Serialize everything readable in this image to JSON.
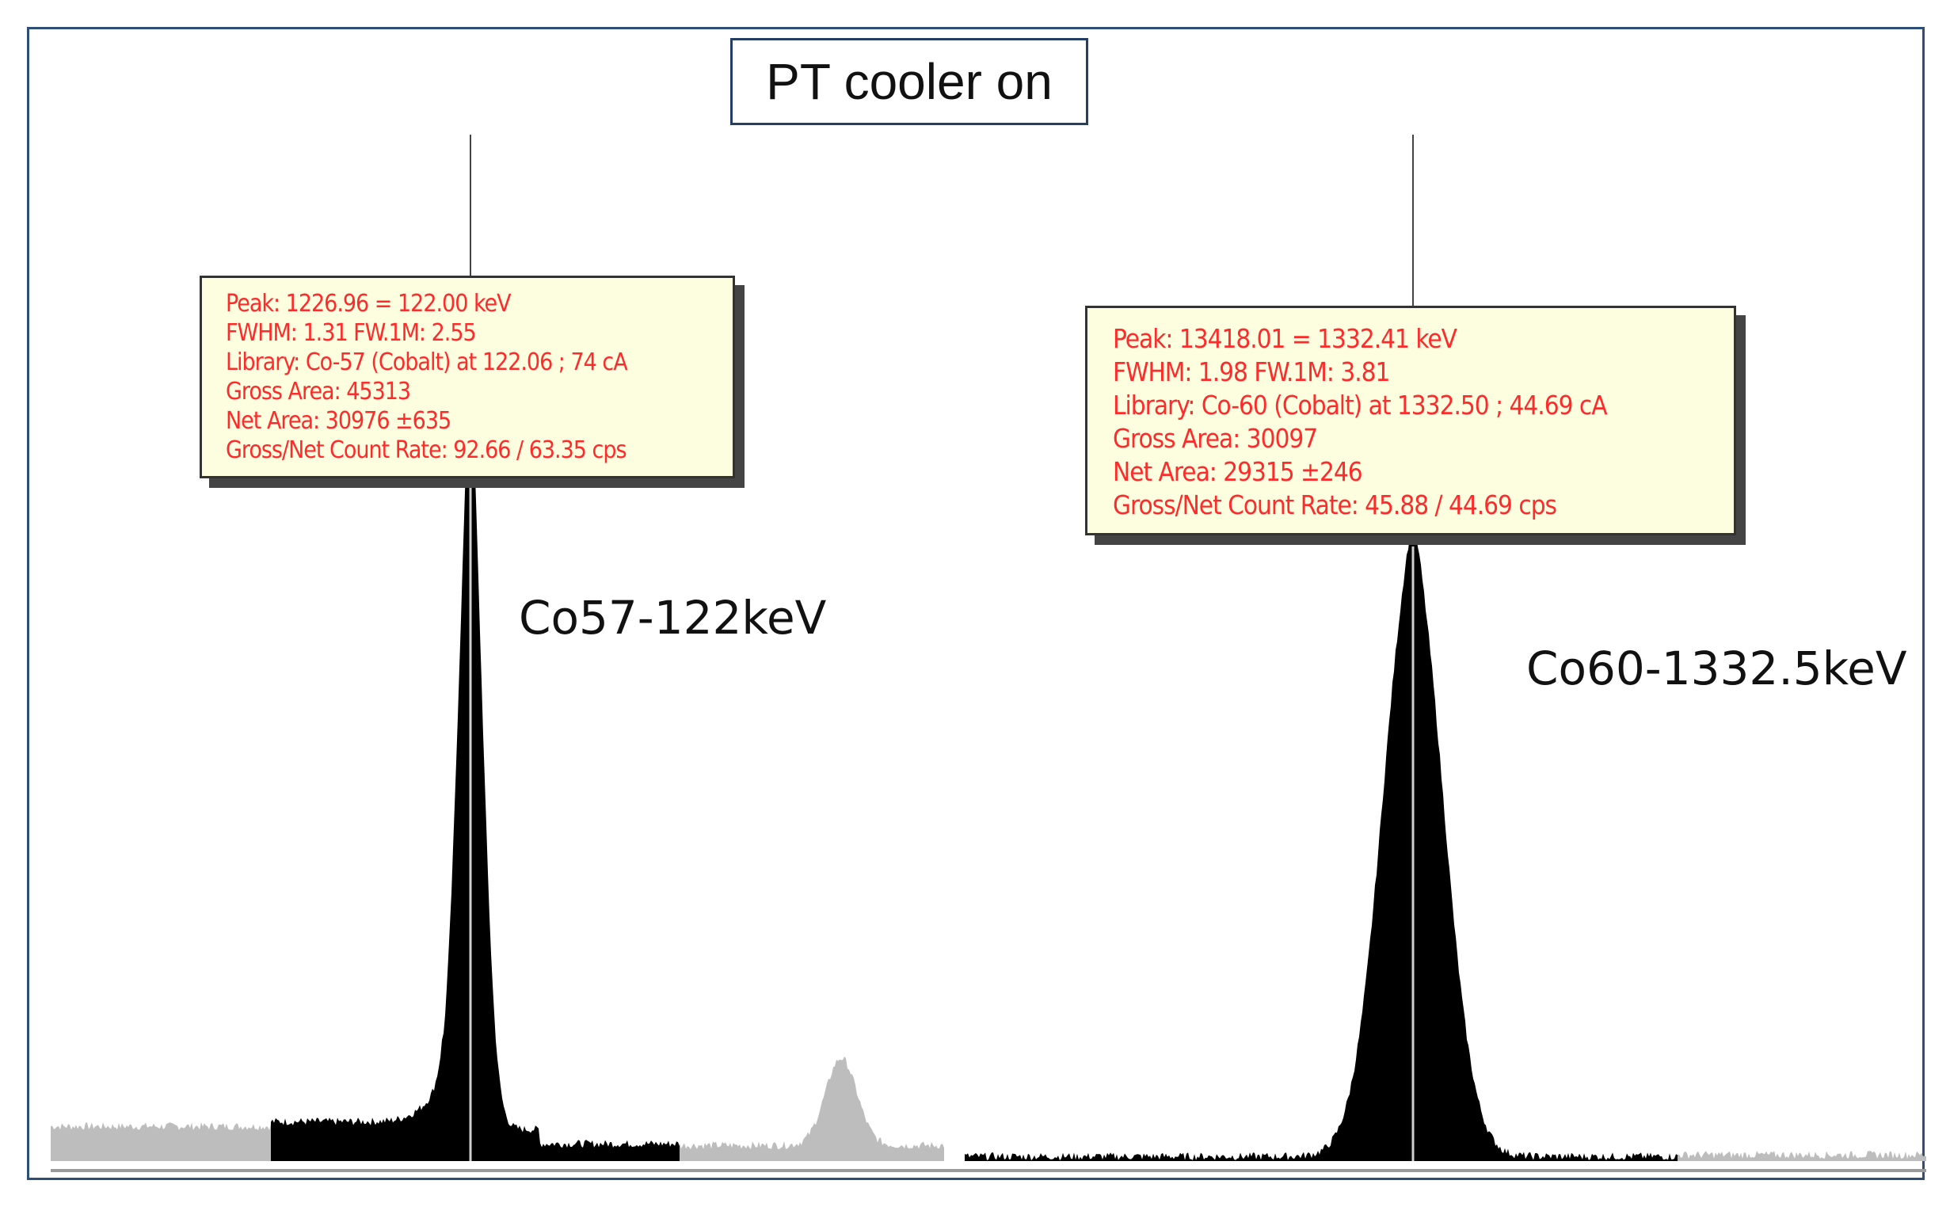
{
  "title": "PT cooler on",
  "peaks": [
    {
      "id": "co57",
      "label": "Co57-122keV",
      "info": [
        "Peak: 1226.96 = 122.00 keV",
        "FWHM: 1.31  FW.1M: 2.55",
        "Library: Co-57 (Cobalt) at 122.06 ;  74 cA",
        "Gross Area: 45313",
        "Net Area: 30976 ±635",
        "Gross/Net Count Rate: 92.66 / 63.35 cps"
      ]
    },
    {
      "id": "co60",
      "label": "Co60-1332.5keV",
      "info": [
        "Peak: 13418.01 = 1332.41 keV",
        "FWHM: 1.98  FW.1M: 3.81",
        "Library: Co-60 (Cobalt) at 1332.50 ;  44.69 cA",
        "Gross Area: 30097",
        "Net Area: 29315 ±246",
        "Gross/Net Count Rate: 45.88 / 44.69 cps"
      ]
    }
  ],
  "colors": {
    "spectrum_roi": "#000000",
    "spectrum_background": "#bdbdbd",
    "info_text": "#ff2a2a",
    "info_background": "#fdfde0",
    "frame_border": "#2e4e7a"
  }
}
